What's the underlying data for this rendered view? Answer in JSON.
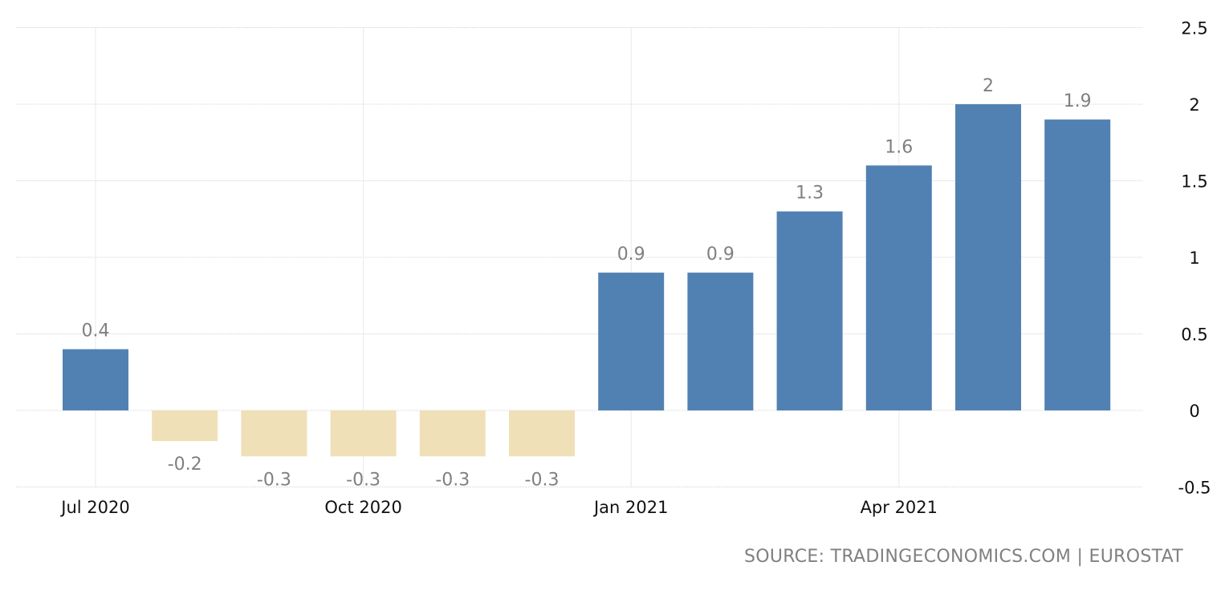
{
  "chart_data": {
    "type": "bar",
    "categories": [
      "Jul 2020",
      "Aug 2020",
      "Sep 2020",
      "Oct 2020",
      "Nov 2020",
      "Dec 2020",
      "Jan 2021",
      "Feb 2021",
      "Mar 2021",
      "Apr 2021",
      "May 2021",
      "Jun 2021"
    ],
    "values": [
      0.4,
      -0.2,
      -0.3,
      -0.3,
      -0.3,
      -0.3,
      0.9,
      0.9,
      1.3,
      1.6,
      2.0,
      1.9
    ],
    "value_labels": [
      "0.4",
      "-0.2",
      "-0.3",
      "-0.3",
      "-0.3",
      "-0.3",
      "0.9",
      "0.9",
      "1.3",
      "1.6",
      "2",
      "1.9"
    ],
    "x_tick_labels": [
      {
        "category": "Jul 2020",
        "label": "Jul 2020"
      },
      {
        "category": "Oct 2020",
        "label": "Oct 2020"
      },
      {
        "category": "Jan 2021",
        "label": "Jan 2021"
      },
      {
        "category": "Apr 2021",
        "label": "Apr 2021"
      }
    ],
    "y_ticks": [
      2.5,
      2,
      1.5,
      1,
      0.5,
      0,
      -0.5
    ],
    "y_tick_labels": [
      "2.5",
      "2",
      "1.5",
      "1",
      "0.5",
      "0",
      "-0.5"
    ],
    "ylim": [
      -0.5,
      2.5
    ],
    "y_axis_side": "right",
    "grid": true,
    "title": "",
    "xlabel": "",
    "ylabel": "",
    "colors": {
      "positive": "#5181b2",
      "negative": "#f0e0b8",
      "grid": "#d4d4d4",
      "value_label": "#808080",
      "tick_label": "#111111"
    }
  },
  "source_text": "SOURCE: TRADINGECONOMICS.COM | EUROSTAT"
}
